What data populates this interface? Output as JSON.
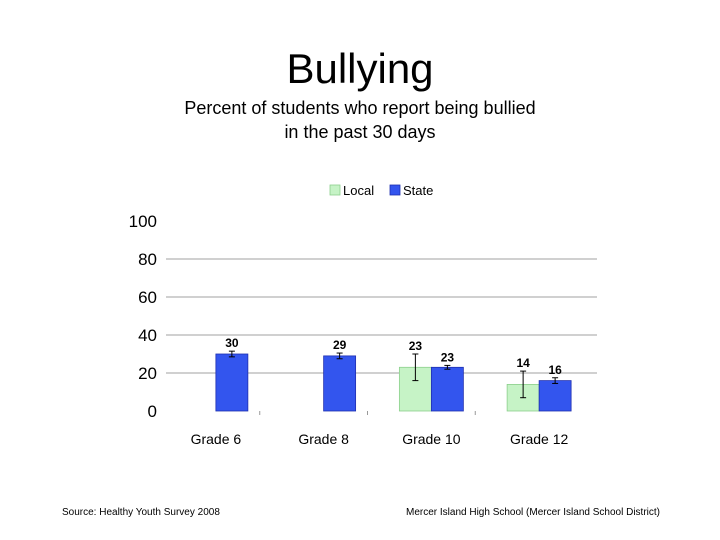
{
  "title": "Bullying",
  "subtitle_line1": "Percent of students who report being bullied",
  "subtitle_line2": "in the past 30 days",
  "footer": {
    "source": "Source: Healthy Youth Survey 2008",
    "school": "Mercer Island High School (Mercer Island School District)"
  },
  "colors": {
    "local": "#c6f3c6",
    "state": "#3355ee",
    "grid": "#a0a0a0"
  },
  "chart_data": {
    "type": "bar",
    "categories": [
      "Grade 6",
      "Grade 8",
      "Grade 10",
      "Grade 12"
    ],
    "series": [
      {
        "name": "Local",
        "values": [
          null,
          null,
          23,
          14
        ],
        "error": [
          null,
          null,
          7,
          7
        ]
      },
      {
        "name": "State",
        "values": [
          30,
          29,
          23,
          16
        ],
        "error": [
          1.5,
          1.5,
          1,
          1.5
        ]
      }
    ],
    "yticks": [
      0,
      20,
      40,
      60,
      80,
      100
    ],
    "ylim": [
      0,
      100
    ],
    "grid": true,
    "legend": "top"
  }
}
